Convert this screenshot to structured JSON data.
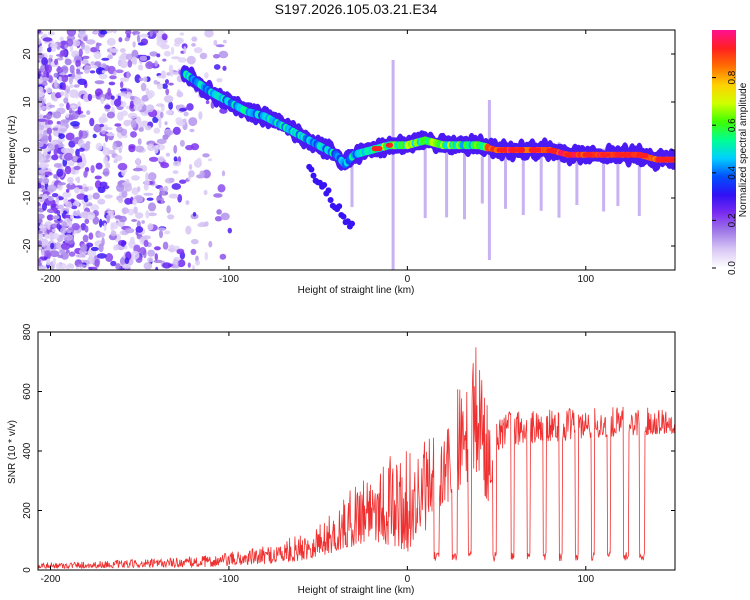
{
  "title": "S197.2026.105.03.21.E34",
  "chart_data": [
    {
      "type": "heatmap",
      "name": "spectrogram",
      "xlabel": "Height of straight line (km)",
      "ylabel": "Frequency (Hz)",
      "xlim": [
        -207,
        150
      ],
      "ylim": [
        -25,
        25
      ],
      "xticks": [
        -200,
        -100,
        0,
        100
      ],
      "yticks": [
        -20,
        -10,
        0,
        10,
        20
      ],
      "ridge": {
        "x": [
          -125,
          -110,
          -100,
          -90,
          -80,
          -70,
          -60,
          -50,
          -40,
          -35,
          -30,
          -20,
          -10,
          0,
          10,
          20,
          30,
          40,
          50,
          60,
          70,
          80,
          90,
          100,
          110,
          120,
          130,
          140,
          150
        ],
        "freq": [
          16,
          12,
          10,
          8,
          7,
          5,
          3,
          1,
          -1,
          -3,
          -1,
          0,
          1,
          1,
          2,
          1,
          1,
          1,
          0,
          0,
          0,
          0,
          -1,
          -1,
          -1,
          -1,
          -1,
          -2,
          -2
        ]
      },
      "colorbar": {
        "label": "Normalized spectral amplitude",
        "range": [
          0.0,
          1.0
        ],
        "ticks": [
          "0.0",
          "0.2",
          "0.4",
          "0.6",
          "0.8"
        ],
        "colors": [
          "#ffffff",
          "#d9c8f5",
          "#a07ae8",
          "#7b2cf0",
          "#3010f5",
          "#0050ff",
          "#00d0ff",
          "#00ff90",
          "#40ff00",
          "#d0ff00",
          "#ffd000",
          "#ff7000",
          "#ff2020",
          "#ff1090"
        ]
      }
    },
    {
      "type": "line",
      "name": "snr",
      "xlabel": "Height of straight line (km)",
      "ylabel": "SNR (10 * v/v)",
      "xlim": [
        -207,
        150
      ],
      "ylim": [
        0,
        800
      ],
      "xticks": [
        -200,
        -100,
        0,
        100
      ],
      "yticks": [
        0,
        200,
        400,
        600,
        800
      ],
      "color": "#f03030",
      "envelope": {
        "x": [
          -207,
          -150,
          -110,
          -80,
          -60,
          -40,
          -20,
          0,
          20,
          30,
          35,
          40,
          45,
          50,
          60,
          80,
          100,
          120,
          150
        ],
        "lo": [
          5,
          8,
          10,
          20,
          30,
          60,
          100,
          60,
          200,
          250,
          300,
          320,
          200,
          400,
          420,
          430,
          440,
          450,
          460
        ],
        "hi": [
          25,
          35,
          50,
          80,
          120,
          200,
          380,
          400,
          470,
          650,
          700,
          790,
          600,
          560,
          540,
          540,
          545,
          550,
          550
        ]
      },
      "gaps": [
        {
          "from": 15,
          "to": 18
        },
        {
          "from": 25,
          "to": 28
        },
        {
          "from": 34,
          "to": 36
        },
        {
          "from": 48,
          "to": 50
        },
        {
          "from": 58,
          "to": 60
        },
        {
          "from": 67,
          "to": 69
        },
        {
          "from": 76,
          "to": 78
        },
        {
          "from": 85,
          "to": 87
        },
        {
          "from": 94,
          "to": 96
        },
        {
          "from": 103,
          "to": 105
        },
        {
          "from": 112,
          "to": 114
        },
        {
          "from": 121,
          "to": 124
        },
        {
          "from": 130,
          "to": 133
        }
      ]
    }
  ]
}
